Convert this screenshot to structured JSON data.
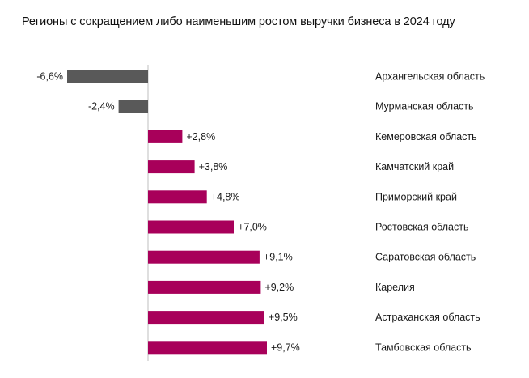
{
  "chart_data": {
    "type": "bar",
    "orientation": "horizontal",
    "title": "Регионы с сокращением либо наименьшим ростом выручки бизнеса в 2024 году",
    "xlabel": "",
    "ylabel": "",
    "unit": "%",
    "grid": false,
    "legend": "none",
    "categories": [
      "Архангельская область",
      "Мурманская область",
      "Кемеровская область",
      "Камчатский край",
      "Приморский край",
      "Ростовская область",
      "Саратовская область",
      "Карелия",
      "Астраханская область",
      "Тамбовская область"
    ],
    "values": [
      -6.6,
      -2.4,
      2.8,
      3.8,
      4.8,
      7.0,
      9.1,
      9.2,
      9.5,
      9.7
    ],
    "value_labels": [
      "-6,6%",
      "-2,4%",
      "+2,8%",
      "+3,8%",
      "+4,8%",
      "+7,0%",
      "+9,1%",
      "+9,2%",
      "+9,5%",
      "+9,7%"
    ],
    "colors": {
      "negative": "#595959",
      "positive": "#a8005a",
      "axis": "#bfbfbf"
    }
  }
}
